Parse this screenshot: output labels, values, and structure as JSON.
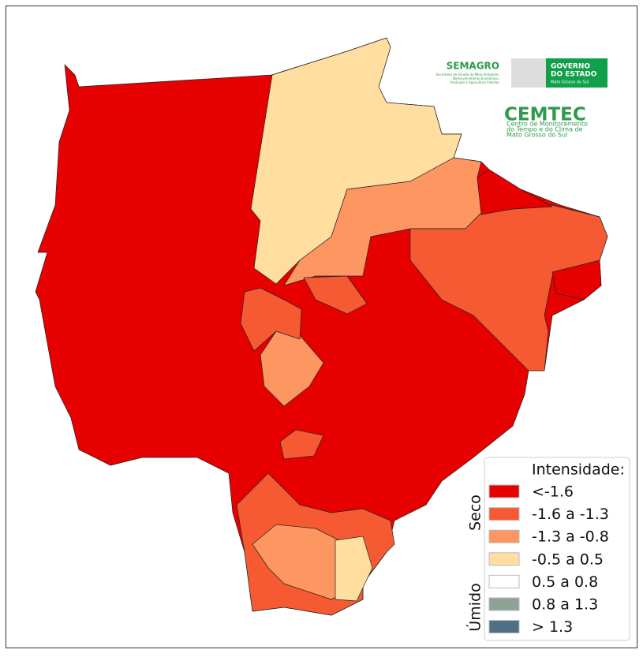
{
  "logos": {
    "semagro": {
      "title": "SEMAGRO",
      "subtitle_lines": [
        "Secretaria de Estado de Meio Ambiente,",
        "Desenvolvimento Econômico,",
        "Produção e Agricultura Familiar"
      ]
    },
    "governo": {
      "lines": [
        "GOVERNO",
        "DO ESTADO",
        "Mato Grosso do Sul"
      ]
    },
    "cemtec": {
      "title": "CEMTEC",
      "subtitle_lines": [
        "Centro de Monitoramento",
        "do Tempo e do Clima de",
        "Mato Grosso do Sul"
      ]
    }
  },
  "legend": {
    "title": "Intensidade:",
    "groups": [
      "Seco",
      "Úmido"
    ],
    "items": [
      {
        "label": "<-1.6",
        "color": "#e60000"
      },
      {
        "label": "-1.6 a -1.3",
        "color": "#f55a32"
      },
      {
        "label": "-1.3 a -0.8",
        "color": "#fd9660"
      },
      {
        "label": "-0.5 a 0.5",
        "color": "#ffdea0"
      },
      {
        "label": "0.5 a 0.8",
        "color": "#ffffff"
      },
      {
        "label": "0.8 a 1.3",
        "color": "#8ea396"
      },
      {
        "label": "> 1.3",
        "color": "#4f6f85"
      }
    ]
  }
}
